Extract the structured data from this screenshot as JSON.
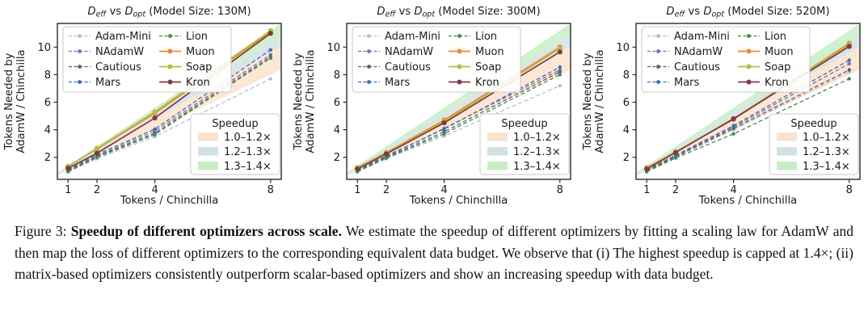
{
  "figure": {
    "caption_label": "Figure 3:",
    "caption_bold": "Speedup of different optimizers across scale.",
    "caption_body": "We estimate the speedup of different optimizers by fitting a scaling law for AdamW and then map the loss of different optimizers to the corresponding equivalent data budget. We observe that (i) The highest speedup is capped at 1.4×; (ii) matrix-based optimizers consistently outperform scalar-based optimizers and show an increasing speedup with data budget."
  },
  "styles": {
    "spine_color": "#2b2b2b",
    "text_color": "#1a1a1a",
    "legend_border": "#c9c9c9",
    "band_colors": [
      "#fae3cd",
      "#d3e1e4",
      "#c8edc5"
    ]
  },
  "chart_data": [
    {
      "type": "line",
      "title": {
        "var1": "D",
        "sub1": "eff",
        "mid": " vs ",
        "var2": "D",
        "sub2": "opt",
        "rest": " (Model Size: 130M)"
      },
      "model_size": "130M",
      "xlabel": "Tokens / Chinchilla",
      "ylabel_line1": "Tokens Needed by",
      "ylabel_line2": "AdamW / Chinchilla",
      "x": [
        1,
        2,
        4,
        8
      ],
      "xticks": [
        1,
        2,
        4,
        8
      ],
      "yticks": [
        2,
        4,
        6,
        8,
        10
      ],
      "xlim": [
        0.63,
        8.37
      ],
      "ylim": [
        0.4,
        11.72
      ],
      "grid": false,
      "series": [
        {
          "name": "Adam-Mini",
          "color": "#b9bdd6",
          "dashed": true,
          "values": [
            0.95,
            1.9,
            3.5,
            7.7
          ]
        },
        {
          "name": "NAdamW",
          "color": "#7a6fb6",
          "dashed": true,
          "values": [
            1.05,
            2.1,
            3.9,
            9.45
          ]
        },
        {
          "name": "Cautious",
          "color": "#5f5f66",
          "dashed": true,
          "values": [
            1.0,
            2.05,
            3.75,
            9.3
          ]
        },
        {
          "name": "Mars",
          "color": "#3d6fb3",
          "dashed": true,
          "values": [
            1.1,
            2.2,
            4.05,
            9.8
          ]
        },
        {
          "name": "Lion",
          "color": "#3f8e4d",
          "dashed": true,
          "values": [
            0.95,
            2.0,
            3.65,
            9.2
          ]
        },
        {
          "name": "Muon",
          "color": "#ee8636",
          "dashed": false,
          "values": [
            1.35,
            2.6,
            5.2,
            11.1
          ]
        },
        {
          "name": "Soap",
          "color": "#b5bd3d",
          "dashed": false,
          "values": [
            1.3,
            2.65,
            5.3,
            11.2
          ]
        },
        {
          "name": "Kron",
          "color": "#7e3b3f",
          "dashed": false,
          "values": [
            1.2,
            2.3,
            4.85,
            11.0
          ]
        }
      ],
      "speedup_legend": {
        "title": "Speedup",
        "entries": [
          {
            "label": "1.0–1.2×",
            "range": [
              1.0,
              1.2
            ],
            "color": "#fae3cd"
          },
          {
            "label": "1.2–1.3×",
            "range": [
              1.2,
              1.3
            ],
            "color": "#d3e1e4"
          },
          {
            "label": "1.3–1.4×",
            "range": [
              1.3,
              1.4
            ],
            "color": "#c8edc5"
          }
        ]
      }
    },
    {
      "type": "line",
      "title": {
        "var1": "D",
        "sub1": "eff",
        "mid": " vs ",
        "var2": "D",
        "sub2": "opt",
        "rest": " (Model Size: 300M)"
      },
      "model_size": "300M",
      "xlabel": "Tokens / Chinchilla",
      "ylabel_line1": "Tokens Needed by",
      "ylabel_line2": "AdamW / Chinchilla",
      "x": [
        1,
        2,
        4,
        8
      ],
      "xticks": [
        1,
        2,
        4,
        8
      ],
      "yticks": [
        2,
        4,
        6,
        8,
        10
      ],
      "xlim": [
        0.63,
        8.37
      ],
      "ylim": [
        0.4,
        11.72
      ],
      "grid": false,
      "series": [
        {
          "name": "Adam-Mini",
          "color": "#b9bdd6",
          "dashed": true,
          "values": [
            0.95,
            1.9,
            3.55,
            7.2
          ]
        },
        {
          "name": "NAdamW",
          "color": "#7a6fb6",
          "dashed": true,
          "values": [
            1.05,
            2.05,
            4.1,
            8.35
          ]
        },
        {
          "name": "Cautious",
          "color": "#5f5f66",
          "dashed": true,
          "values": [
            1.0,
            2.0,
            3.85,
            8.2
          ]
        },
        {
          "name": "Mars",
          "color": "#3d6fb3",
          "dashed": true,
          "values": [
            1.1,
            2.1,
            4.05,
            8.55
          ]
        },
        {
          "name": "Lion",
          "color": "#3f8e4d",
          "dashed": true,
          "values": [
            0.95,
            1.95,
            3.7,
            8.0
          ]
        },
        {
          "name": "Muon",
          "color": "#ee8636",
          "dashed": false,
          "values": [
            1.25,
            2.35,
            4.7,
            10.0
          ]
        },
        {
          "name": "Soap",
          "color": "#b5bd3d",
          "dashed": false,
          "values": [
            1.2,
            2.3,
            4.6,
            9.9
          ]
        },
        {
          "name": "Kron",
          "color": "#7e3b3f",
          "dashed": false,
          "values": [
            1.15,
            2.25,
            4.5,
            9.65
          ]
        }
      ],
      "speedup_legend": {
        "title": "Speedup",
        "entries": [
          {
            "label": "1.0–1.2×",
            "range": [
              1.0,
              1.2
            ],
            "color": "#fae3cd"
          },
          {
            "label": "1.2–1.3×",
            "range": [
              1.2,
              1.3
            ],
            "color": "#d3e1e4"
          },
          {
            "label": "1.3–1.4×",
            "range": [
              1.3,
              1.4
            ],
            "color": "#c8edc5"
          }
        ]
      }
    },
    {
      "type": "line",
      "title": {
        "var1": "D",
        "sub1": "eff",
        "mid": " vs ",
        "var2": "D",
        "sub2": "opt",
        "rest": " (Model Size: 520M)"
      },
      "model_size": "520M",
      "xlabel": "Tokens / Chinchilla",
      "ylabel_line1": "Tokens Needed by",
      "ylabel_line2": "AdamW / Chinchilla",
      "x": [
        1,
        2,
        4,
        8
      ],
      "xticks": [
        1,
        2,
        4,
        8
      ],
      "yticks": [
        2,
        4,
        6,
        8,
        10
      ],
      "xlim": [
        0.63,
        8.37
      ],
      "ylim": [
        0.4,
        11.72
      ],
      "grid": false,
      "series": [
        {
          "name": "Adam-Mini",
          "color": "#b9bdd6",
          "dashed": true,
          "values": [
            1.0,
            2.0,
            4.0,
            8.2
          ]
        },
        {
          "name": "NAdamW",
          "color": "#7a6fb6",
          "dashed": true,
          "values": [
            1.05,
            2.1,
            4.2,
            8.8
          ]
        },
        {
          "name": "Cautious",
          "color": "#5f5f66",
          "dashed": true,
          "values": [
            1.0,
            2.05,
            4.1,
            8.35
          ]
        },
        {
          "name": "Mars",
          "color": "#3d6fb3",
          "dashed": true,
          "values": [
            1.1,
            2.15,
            4.3,
            9.05
          ]
        },
        {
          "name": "Lion",
          "color": "#3f8e4d",
          "dashed": true,
          "values": [
            0.95,
            1.95,
            3.7,
            7.7
          ]
        },
        {
          "name": "Muon",
          "color": "#ee8636",
          "dashed": false,
          "values": [
            1.25,
            2.4,
            4.75,
            10.2
          ]
        },
        {
          "name": "Soap",
          "color": "#b5bd3d",
          "dashed": false,
          "values": [
            1.2,
            2.4,
            4.8,
            10.3
          ]
        },
        {
          "name": "Kron",
          "color": "#7e3b3f",
          "dashed": false,
          "values": [
            1.15,
            2.35,
            4.8,
            10.05
          ]
        }
      ],
      "speedup_legend": {
        "title": "Speedup",
        "entries": [
          {
            "label": "1.0–1.2×",
            "range": [
              1.0,
              1.2
            ],
            "color": "#fae3cd"
          },
          {
            "label": "1.2–1.3×",
            "range": [
              1.2,
              1.3
            ],
            "color": "#d3e1e4"
          },
          {
            "label": "1.3–1.4×",
            "range": [
              1.3,
              1.4
            ],
            "color": "#c8edc5"
          }
        ]
      }
    }
  ]
}
